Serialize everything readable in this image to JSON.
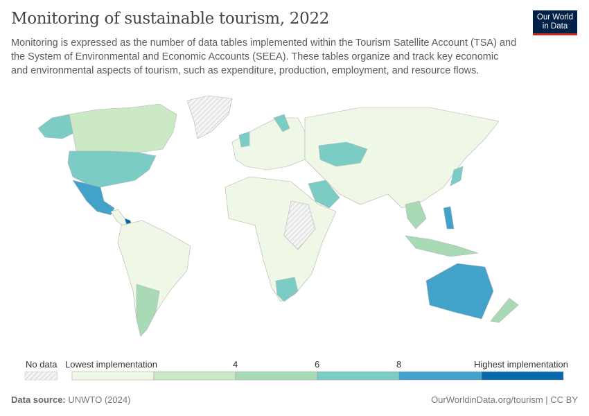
{
  "header": {
    "title": "Monitoring of sustainable tourism, 2022",
    "subtitle": "Monitoring is expressed as the number of data tables implemented within the Tourism Satellite Account (TSA) and the System of Environmental and Economic Accounts (SEEA). These tables organize and track key economic and environmental aspects of tourism, such as expenditure, production, employment, and resource flows.",
    "logo_text": "Our World in Data"
  },
  "map": {
    "colors": {
      "no_data": "#e0e0e0",
      "bin1": "#eff7e6",
      "bin2": "#cce9c6",
      "bin3": "#a8dab5",
      "bin4": "#7bccc4",
      "bin5": "#43a2ca",
      "bin6": "#0868ac",
      "border": "#b3b3b3"
    },
    "legend": {
      "no_data_label": "No data",
      "low_label": "Lowest implementation",
      "tick_4": "4",
      "tick_6": "6",
      "tick_8": "8",
      "high_label": "Highest implementation"
    }
  },
  "footer": {
    "source_label": "Data source:",
    "source": "UNWTO (2024)",
    "url": "OurWorldinData.org/tourism | CC BY"
  }
}
